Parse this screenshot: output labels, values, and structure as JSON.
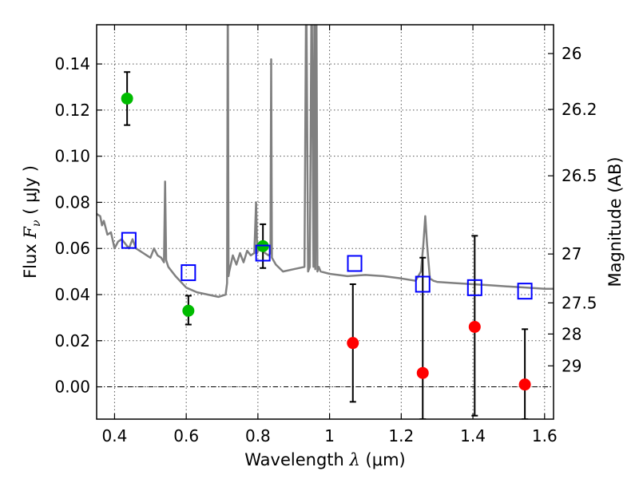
{
  "chart_data": {
    "type": "scatter",
    "title": "",
    "xlabel": "Wavelength",
    "xlabel_symbol": "λ",
    "xlabel_unit": "(μm)",
    "ylabel": "Flux",
    "ylabel_symbol": "F",
    "ylabel_subscript": "ν",
    "ylabel_unit": "( μJy )",
    "y2label": "Magnitude (AB)",
    "xlim": [
      0.35,
      1.625
    ],
    "ylim": [
      -0.014,
      0.157
    ],
    "grid": true,
    "x_ticks": [
      0.4,
      0.6,
      0.8,
      1.0,
      1.2,
      1.4,
      1.6
    ],
    "x_tick_labels": [
      "0.4",
      "0.6",
      "0.8",
      "1",
      "1.2",
      "1.4",
      "1.6"
    ],
    "y_ticks": [
      0.0,
      0.02,
      0.04,
      0.06,
      0.08,
      0.1,
      0.12,
      0.14
    ],
    "y_tick_labels": [
      "0.00",
      "0.02",
      "0.04",
      "0.06",
      "0.08",
      "0.10",
      "0.12",
      "0.14"
    ],
    "y2_ticks": [
      {
        "flux": 0.1445,
        "label": "26"
      },
      {
        "flux": 0.1203,
        "label": "26.2"
      },
      {
        "flux": 0.0915,
        "label": "26.5"
      },
      {
        "flux": 0.0576,
        "label": "27"
      },
      {
        "flux": 0.0364,
        "label": "27.5"
      },
      {
        "flux": 0.0229,
        "label": "28"
      },
      {
        "flux": 0.0091,
        "label": "29"
      }
    ],
    "series": [
      {
        "marker": "circle",
        "color": "#00bb00",
        "points": [
          {
            "x": 0.435,
            "y": 0.125,
            "yerr_low": 0.1135,
            "yerr_high": 0.1365
          },
          {
            "x": 0.606,
            "y": 0.033,
            "yerr_low": 0.027,
            "yerr_high": 0.0395
          },
          {
            "x": 0.814,
            "y": 0.061,
            "yerr_low": 0.0515,
            "yerr_high": 0.0705
          }
        ]
      },
      {
        "marker": "circle",
        "color": "#ff0000",
        "points": [
          {
            "x": 1.065,
            "y": 0.019,
            "yerr_low": -0.0065,
            "yerr_high": 0.0445
          },
          {
            "x": 1.26,
            "y": 0.006,
            "yerr_low": -0.014,
            "yerr_high": 0.056
          },
          {
            "x": 1.405,
            "y": 0.026,
            "yerr_low": -0.0125,
            "yerr_high": 0.0655
          },
          {
            "x": 1.545,
            "y": 0.001,
            "yerr_low": -0.014,
            "yerr_high": 0.025
          }
        ]
      },
      {
        "marker": "open-square",
        "color": "#0000ff",
        "points": [
          {
            "x": 0.44,
            "y": 0.0635
          },
          {
            "x": 0.606,
            "y": 0.0495
          },
          {
            "x": 0.814,
            "y": 0.058
          },
          {
            "x": 1.07,
            "y": 0.0535
          },
          {
            "x": 1.26,
            "y": 0.0445
          },
          {
            "x": 1.405,
            "y": 0.043
          },
          {
            "x": 1.545,
            "y": 0.0415
          }
        ]
      },
      {
        "type": "line",
        "color": "#808080",
        "x": [
          0.35,
          0.36,
          0.365,
          0.37,
          0.38,
          0.39,
          0.4,
          0.41,
          0.42,
          0.43,
          0.44,
          0.45,
          0.46,
          0.47,
          0.48,
          0.49,
          0.5,
          0.51,
          0.52,
          0.53,
          0.538,
          0.541,
          0.544,
          0.55,
          0.57,
          0.6,
          0.63,
          0.66,
          0.69,
          0.71,
          0.714,
          0.716,
          0.718,
          0.72,
          0.73,
          0.74,
          0.75,
          0.76,
          0.77,
          0.78,
          0.79,
          0.795,
          0.798,
          0.8,
          0.81,
          0.82,
          0.83,
          0.835,
          0.837,
          0.839,
          0.85,
          0.87,
          0.9,
          0.93,
          0.935,
          0.94,
          0.945,
          0.95,
          0.955,
          0.958,
          0.96,
          0.963,
          0.966,
          0.97,
          0.975,
          1.0,
          1.05,
          1.1,
          1.15,
          1.2,
          1.24,
          1.255,
          1.262,
          1.267,
          1.272,
          1.28,
          1.29,
          1.3,
          1.35,
          1.4,
          1.45,
          1.5,
          1.55,
          1.6,
          1.625
        ],
        "y": [
          0.075,
          0.074,
          0.07,
          0.072,
          0.066,
          0.067,
          0.06,
          0.063,
          0.064,
          0.062,
          0.06,
          0.064,
          0.06,
          0.059,
          0.058,
          0.057,
          0.056,
          0.06,
          0.057,
          0.056,
          0.054,
          0.089,
          0.055,
          0.052,
          0.048,
          0.043,
          0.041,
          0.04,
          0.039,
          0.04,
          0.045,
          0.18,
          0.048,
          0.05,
          0.057,
          0.053,
          0.058,
          0.054,
          0.059,
          0.057,
          0.058,
          0.08,
          0.058,
          0.059,
          0.06,
          0.058,
          0.057,
          0.058,
          0.142,
          0.056,
          0.053,
          0.05,
          0.051,
          0.052,
          0.18,
          0.05,
          0.052,
          0.18,
          0.052,
          0.18,
          0.051,
          0.18,
          0.05,
          0.052,
          0.05,
          0.049,
          0.048,
          0.0485,
          0.048,
          0.047,
          0.046,
          0.05,
          0.062,
          0.074,
          0.062,
          0.047,
          0.046,
          0.0455,
          0.045,
          0.0445,
          0.044,
          0.0435,
          0.043,
          0.0425,
          0.0425
        ]
      }
    ]
  }
}
